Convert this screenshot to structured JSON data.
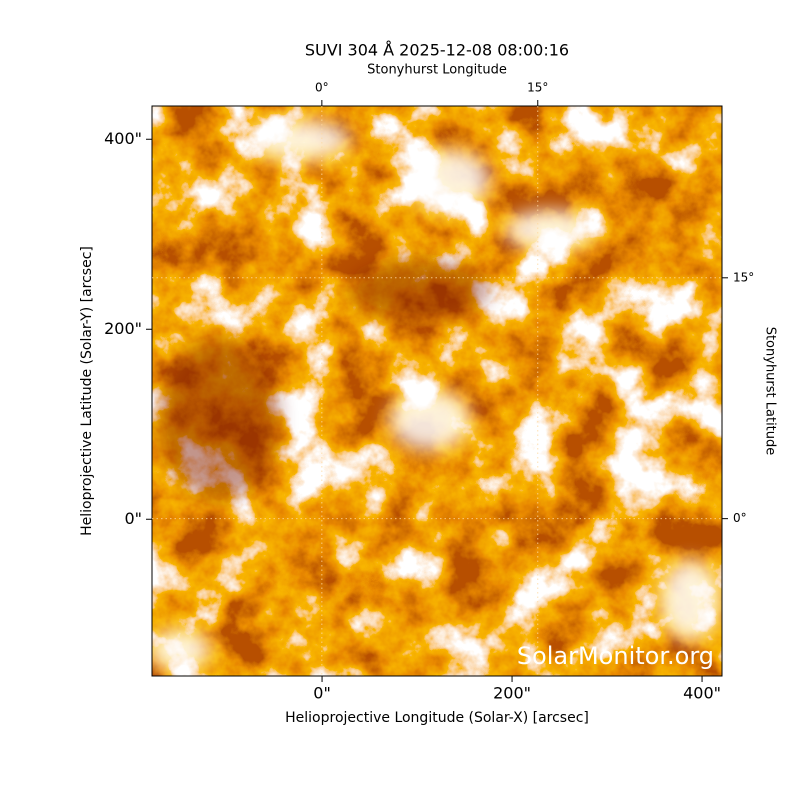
{
  "chart_data": {
    "type": "image",
    "title": "SUVI 304 Å 2025-12-08 08:00:16",
    "x_label": "Helioprojective Longitude (Solar-X) [arcsec]",
    "y_label": "Helioprojective Latitude (Solar-Y) [arcsec]",
    "x2_label": "Stonyhurst Longitude",
    "y2_label": "Stonyhurst Latitude",
    "watermark": "SolarMonitor.org",
    "xlim": [
      -179,
      421
    ],
    "ylim": [
      -165,
      435
    ],
    "xticks": [
      {
        "value": 0,
        "label": "0\""
      },
      {
        "value": 200,
        "label": "200\""
      },
      {
        "value": 400,
        "label": "400\""
      }
    ],
    "yticks": [
      {
        "value": 0,
        "label": "0\""
      },
      {
        "value": 200,
        "label": "200\""
      },
      {
        "value": 400,
        "label": "400\""
      }
    ],
    "x2lim": [
      -11.8,
      27.8
    ],
    "x2ticks": [
      {
        "value": 0,
        "label": "0°"
      },
      {
        "value": 15,
        "label": "15°"
      }
    ],
    "y2lim": [
      -9.8,
      25.7
    ],
    "y2ticks": [
      {
        "value": 0,
        "label": "0°"
      },
      {
        "value": 15,
        "label": "15°"
      }
    ],
    "grid": true,
    "colormap": [
      "#7a1500",
      "#d04000",
      "#f27800",
      "#ffffff"
    ]
  }
}
